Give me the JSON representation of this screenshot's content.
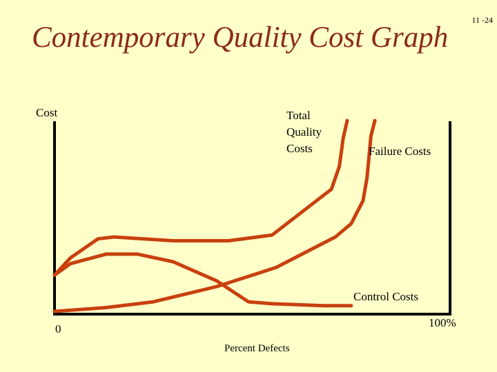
{
  "slide_number": "11 -24",
  "title": "Contemporary Quality Cost Graph",
  "chart_data": {
    "type": "line",
    "title": "Contemporary Quality Cost Graph",
    "xlabel": "Percent Defects",
    "ylabel": "Cost",
    "x_tick_labels": [
      "0",
      "100%"
    ],
    "xlim": [
      0,
      100
    ],
    "ylim": [
      0,
      100
    ],
    "grid": false,
    "legend": "inline labels",
    "series": [
      {
        "name": "Total Quality Costs",
        "color": "#c8400e",
        "points": [
          [
            0,
            19
          ],
          [
            4,
            28
          ],
          [
            11,
            38
          ],
          [
            15,
            39
          ],
          [
            30,
            37
          ],
          [
            44,
            37
          ],
          [
            55,
            40
          ],
          [
            70,
            64
          ],
          [
            72,
            76
          ],
          [
            73,
            91
          ],
          [
            74,
            100
          ]
        ]
      },
      {
        "name": "Failure Costs",
        "color": "#c8400e",
        "points": [
          [
            0,
            0
          ],
          [
            13,
            2
          ],
          [
            25,
            5
          ],
          [
            41,
            13
          ],
          [
            56,
            23
          ],
          [
            71,
            39
          ],
          [
            75,
            46
          ],
          [
            78,
            58
          ],
          [
            79,
            70
          ],
          [
            80,
            92
          ],
          [
            81,
            100
          ]
        ]
      },
      {
        "name": "Control Costs",
        "color": "#c8400e",
        "points": [
          [
            0,
            19
          ],
          [
            4,
            25
          ],
          [
            13,
            30
          ],
          [
            21,
            30
          ],
          [
            30,
            26
          ],
          [
            41,
            16
          ],
          [
            49,
            5
          ],
          [
            55,
            4
          ],
          [
            68,
            3
          ],
          [
            75,
            3
          ]
        ]
      }
    ]
  }
}
